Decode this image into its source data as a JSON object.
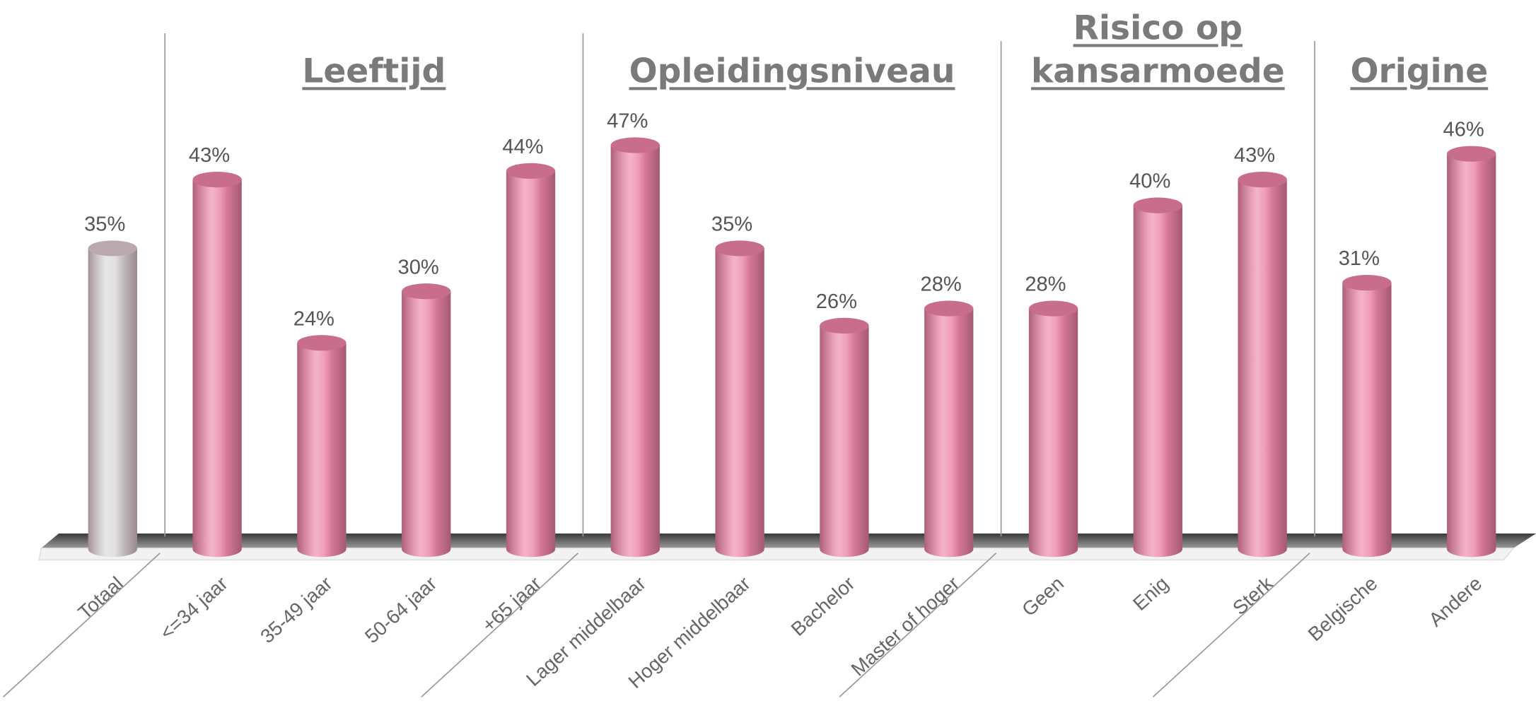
{
  "chart_data": {
    "type": "bar",
    "categories": [
      "Totaal",
      "<=34 jaar",
      "35-49 jaar",
      "50-64 jaar",
      "+65 jaar",
      "Lager middelbaar",
      "Hoger middelbaar",
      "Bachelor",
      "Master of hoger",
      "Geen",
      "Enig",
      "Sterk",
      "Belgische",
      "Andere"
    ],
    "values": [
      35,
      43,
      24,
      30,
      44,
      47,
      35,
      26,
      28,
      28,
      40,
      43,
      31,
      46
    ],
    "value_labels": [
      "35%",
      "43%",
      "24%",
      "30%",
      "44%",
      "47%",
      "35%",
      "26%",
      "28%",
      "28%",
      "40%",
      "43%",
      "31%",
      "46%"
    ],
    "colors": [
      "#d9d9d9",
      "#ec89ab",
      "#ec89ab",
      "#ec89ab",
      "#ec89ab",
      "#ec89ab",
      "#ec89ab",
      "#ec89ab",
      "#ec89ab",
      "#ec89ab",
      "#ec89ab",
      "#ec89ab",
      "#ec89ab",
      "#ec89ab"
    ],
    "groups": [
      {
        "label": "Leeftijd",
        "count": 4
      },
      {
        "label": "Opleidingsniveau",
        "count": 4
      },
      {
        "label": "Risico op kansarmoede",
        "count": 3
      },
      {
        "label": "Origine",
        "count": 2
      }
    ],
    "ylim": [
      0,
      50
    ]
  }
}
